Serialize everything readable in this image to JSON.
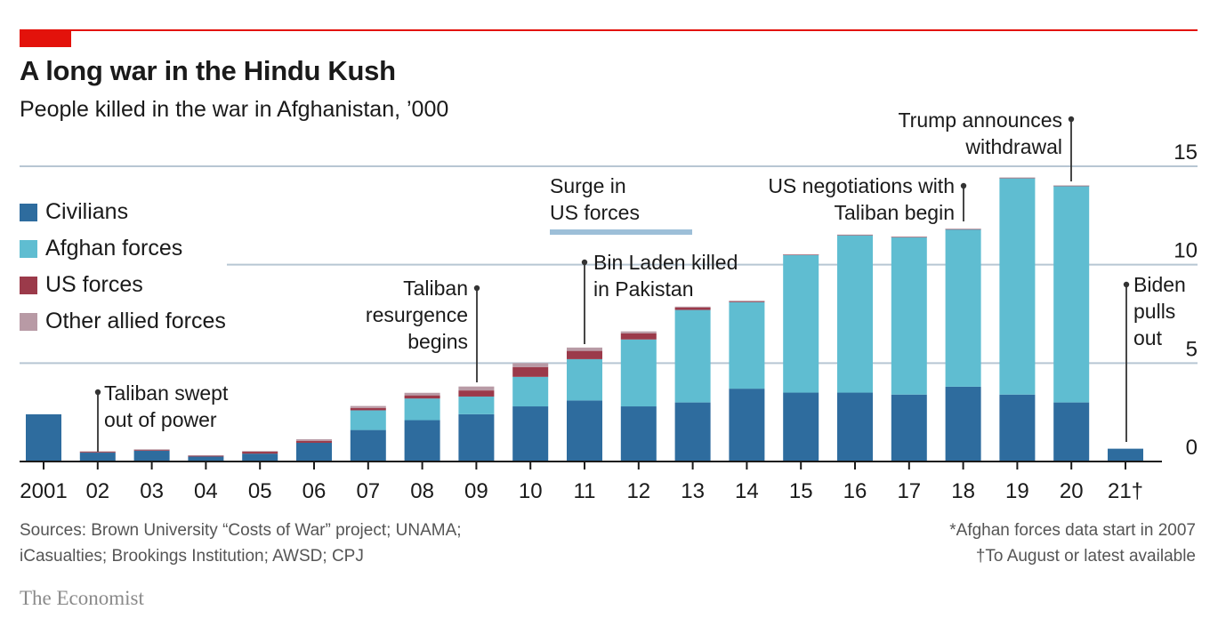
{
  "header": {
    "title": "A long war in the Hindu Kush",
    "subtitle": "People killed in the war in Afghanistan, ’000"
  },
  "legend": [
    {
      "label": "Civilians",
      "color": "#2e6c9e"
    },
    {
      "label": "Afghan forces",
      "color": "#5fbdd1"
    },
    {
      "label": "US forces",
      "color": "#9b3a4a"
    },
    {
      "label": "Other allied forces",
      "color": "#b89aa5"
    }
  ],
  "footer": {
    "sources": [
      "Sources: Brown University “Costs of War” project; UNAMA;",
      "iCasualties; Brookings Institution; AWSD; CPJ"
    ],
    "notes": [
      "*Afghan forces data start in 2007",
      "†To August or latest available"
    ],
    "brand": "The Economist"
  },
  "chart_data": {
    "type": "bar",
    "stacked": true,
    "categories": [
      "2001",
      "02",
      "03",
      "04",
      "05",
      "06",
      "07",
      "08",
      "09",
      "10",
      "11",
      "12",
      "13",
      "14",
      "15",
      "16",
      "17",
      "18",
      "19",
      "20",
      "21†"
    ],
    "series": [
      {
        "name": "Civilians",
        "color": "#2e6c9e",
        "values": [
          2.4,
          0.45,
          0.55,
          0.25,
          0.4,
          0.95,
          1.6,
          2.1,
          2.4,
          2.8,
          3.1,
          2.8,
          3.0,
          3.7,
          3.5,
          3.5,
          3.4,
          3.8,
          3.4,
          3.0,
          0.65
        ]
      },
      {
        "name": "Afghan forces",
        "color": "#5fbdd1",
        "values": [
          0,
          0,
          0,
          0,
          0,
          0,
          1.0,
          1.1,
          0.9,
          1.5,
          2.1,
          3.4,
          4.7,
          4.4,
          7.0,
          8.0,
          8.0,
          8.0,
          11.0,
          11.0,
          0
        ]
      },
      {
        "name": "US forces",
        "color": "#9b3a4a",
        "values": [
          0,
          0.05,
          0.05,
          0.05,
          0.1,
          0.1,
          0.12,
          0.16,
          0.31,
          0.5,
          0.42,
          0.31,
          0.13,
          0.05,
          0.02,
          0.02,
          0.02,
          0.02,
          0.02,
          0.02,
          0
        ]
      },
      {
        "name": "Other allied forces",
        "color": "#b89aa5",
        "values": [
          0,
          0.02,
          0.02,
          0.02,
          0.03,
          0.08,
          0.1,
          0.13,
          0.2,
          0.2,
          0.17,
          0.1,
          0.04,
          0.02,
          0.01,
          0.01,
          0.01,
          0.01,
          0.01,
          0.01,
          0
        ]
      }
    ],
    "ylim": [
      0,
      15
    ],
    "yticks": [
      0,
      5,
      10,
      15
    ],
    "annotations": [
      {
        "category": "02",
        "lines": [
          "Taliban swept",
          "out of power"
        ]
      },
      {
        "category": "09",
        "lines": [
          "Taliban",
          "resurgence",
          "begins"
        ]
      },
      {
        "category": "11",
        "lines": [
          "Bin Laden killed",
          "in Pakistan"
        ]
      },
      {
        "category": "13",
        "lines": [
          "Surge in",
          "US forces"
        ]
      },
      {
        "category": "18",
        "lines": [
          "US negotiations with",
          "Taliban begin"
        ]
      },
      {
        "category": "20",
        "lines": [
          "Trump announces",
          "withdrawal"
        ]
      },
      {
        "category": "21†",
        "lines": [
          "Biden",
          "pulls",
          "out"
        ]
      }
    ]
  }
}
